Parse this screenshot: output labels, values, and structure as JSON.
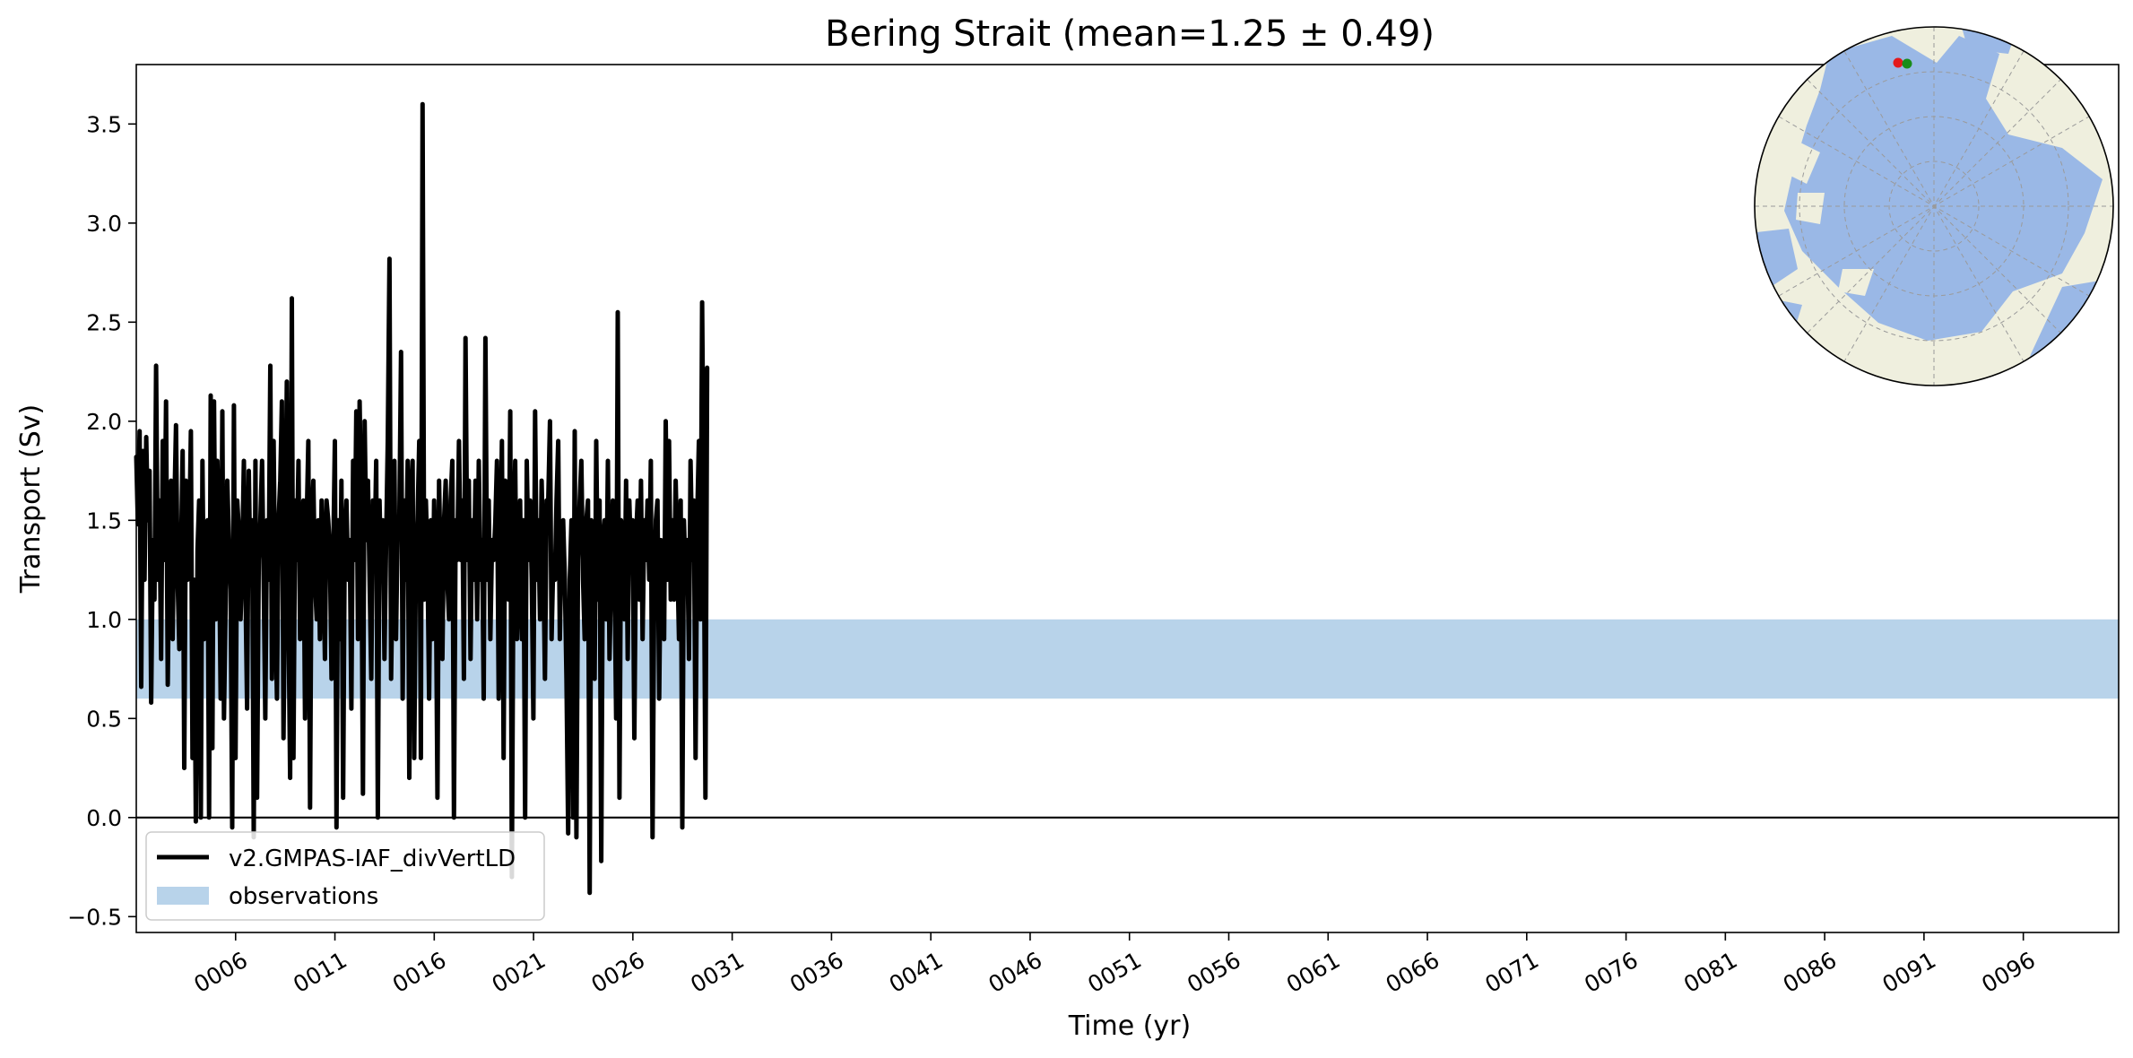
{
  "chart_data": {
    "type": "line",
    "title": "Bering Strait (mean=1.25 ± 0.49)",
    "xlabel": "Time (yr)",
    "ylabel": "Transport (Sv)",
    "xlim": [
      1,
      100.8
    ],
    "ylim": [
      -0.58,
      3.8
    ],
    "x_tick_values": [
      6,
      11,
      16,
      21,
      26,
      31,
      36,
      41,
      46,
      51,
      56,
      61,
      66,
      71,
      76,
      81,
      86,
      91,
      96
    ],
    "x_tick_labels": [
      "0006",
      "0011",
      "0016",
      "0021",
      "0026",
      "0031",
      "0036",
      "0041",
      "0046",
      "0051",
      "0056",
      "0061",
      "0066",
      "0071",
      "0076",
      "0081",
      "0086",
      "0091",
      "0096"
    ],
    "y_ticks": [
      -0.5,
      0.0,
      0.5,
      1.0,
      1.5,
      2.0,
      2.5,
      3.0,
      3.5
    ],
    "y_tick_labels": [
      "−0.5",
      "0.0",
      "0.5",
      "1.0",
      "1.5",
      "2.0",
      "2.5",
      "3.0",
      "3.5"
    ],
    "zero_line": 0,
    "grid": false,
    "legend_position": "lower-left",
    "series": [
      {
        "name": "v2.GMPAS-IAF_divVertLD",
        "color": "#000000",
        "x_start": 1.0,
        "x_step": 0.0833,
        "values": [
          1.82,
          1.48,
          1.95,
          0.66,
          1.85,
          1.2,
          1.92,
          1.5,
          1.75,
          0.58,
          1.4,
          1.1,
          2.28,
          1.2,
          1.6,
          0.8,
          1.9,
          1.3,
          2.1,
          0.67,
          1.45,
          1.7,
          0.9,
          1.55,
          1.98,
          1.2,
          0.85,
          1.3,
          1.85,
          0.25,
          1.7,
          1.2,
          1.4,
          1.95,
          0.3,
          1.2,
          -0.02,
          1.35,
          1.6,
          0.0,
          1.8,
          0.9,
          1.2,
          1.5,
          0.0,
          2.13,
          0.35,
          2.1,
          1.0,
          1.8,
          1.4,
          0.6,
          2.05,
          0.5,
          1.1,
          1.7,
          1.4,
          1.15,
          -0.05,
          2.08,
          0.3,
          1.6,
          1.45,
          1.0,
          1.3,
          1.8,
          1.15,
          0.55,
          1.75,
          1.2,
          1.5,
          -0.1,
          1.8,
          0.1,
          1.3,
          1.5,
          1.8,
          1.2,
          0.5,
          1.5,
          1.2,
          2.28,
          0.7,
          1.9,
          1.1,
          0.6,
          1.5,
          1.7,
          2.1,
          0.4,
          1.3,
          2.2,
          1.0,
          0.2,
          2.62,
          0.3,
          1.6,
          1.3,
          1.8,
          0.9,
          1.4,
          1.6,
          0.5,
          1.5,
          1.9,
          0.05,
          1.5,
          1.7,
          1.2,
          1.0,
          1.5,
          0.9,
          1.6,
          1.3,
          0.8,
          1.6,
          1.5,
          1.35,
          0.7,
          1.3,
          1.9,
          -0.05,
          1.5,
          0.9,
          1.7,
          0.1,
          1.4,
          1.6,
          1.2,
          1.4,
          0.55,
          1.8,
          1.3,
          2.05,
          0.9,
          2.1,
          1.5,
          0.12,
          2.0,
          1.4,
          1.7,
          1.2,
          0.7,
          1.6,
          1.3,
          1.8,
          0.0,
          1.6,
          1.2,
          1.5,
          0.8,
          1.4,
          1.9,
          2.82,
          0.7,
          1.3,
          1.8,
          0.9,
          1.5,
          1.5,
          2.35,
          0.6,
          1.6,
          1.2,
          1.8,
          0.2,
          1.6,
          1.8,
          0.3,
          1.3,
          1.5,
          1.9,
          0.3,
          3.6,
          1.1,
          1.6,
          1.3,
          0.6,
          1.5,
          0.9,
          1.6,
          1.3,
          0.1,
          1.7,
          1.2,
          0.8,
          1.5,
          1.7,
          1.2,
          1.0,
          1.6,
          1.8,
          0.0,
          1.5,
          1.3,
          1.9,
          1.3,
          1.6,
          0.7,
          2.42,
          1.3,
          1.7,
          0.8,
          1.5,
          1.2,
          1.7,
          1.0,
          1.8,
          1.2,
          1.4,
          0.6,
          2.42,
          1.2,
          1.6,
          0.9,
          1.4,
          1.3,
          1.5,
          1.8,
          0.6,
          1.3,
          1.9,
          0.3,
          1.7,
          1.5,
          1.1,
          2.05,
          -0.3,
          1.4,
          1.8,
          0.9,
          1.2,
          1.6,
          0.9,
          1.5,
          0.0,
          1.8,
          1.3,
          1.6,
          1.2,
          0.5,
          2.05,
          1.2,
          1.5,
          1.0,
          1.7,
          1.3,
          0.7,
          1.6,
          1.6,
          2.0,
          0.9,
          1.3,
          1.2,
          1.6,
          1.9,
          0.9,
          1.4,
          1.5,
          1.2,
          0.7,
          -0.08,
          1.2,
          1.5,
          0.0,
          1.95,
          -0.1,
          1.3,
          1.6,
          1.8,
          1.2,
          0.9,
          1.5,
          1.6,
          -0.38,
          1.5,
          1.3,
          0.7,
          1.9,
          1.1,
          1.6,
          -0.22,
          1.4,
          1.5,
          1.0,
          1.8,
          0.8,
          1.2,
          1.6,
          1.3,
          0.5,
          2.55,
          0.1,
          1.5,
          1.3,
          1.0,
          1.7,
          0.8,
          1.6,
          1.3,
          1.5,
          0.4,
          1.4,
          1.6,
          1.1,
          1.7,
          0.9,
          1.5,
          1.3,
          1.6,
          1.2,
          1.8,
          -0.1,
          1.1,
          1.5,
          1.6,
          0.6,
          1.4,
          1.3,
          0.9,
          2.0,
          1.2,
          1.9,
          1.1,
          1.5,
          1.1,
          1.7,
          1.3,
          0.9,
          1.6,
          -0.05,
          1.5,
          1.2,
          1.4,
          0.8,
          1.8,
          1.3,
          1.6,
          0.3,
          1.5,
          1.9,
          1.0,
          2.6,
          1.5,
          0.1,
          2.27
        ]
      }
    ],
    "observations": {
      "name": "observations",
      "range": [
        0.6,
        1.0
      ],
      "color": "#b8d3ea"
    },
    "inset_map": {
      "projection": "north polar stereographic",
      "ocean_color": "#9ab8e6",
      "land_color": "#efefde",
      "markers": [
        {
          "label": "start",
          "color": "#e41a1c"
        },
        {
          "label": "end",
          "color": "#1a8c1a"
        }
      ]
    }
  }
}
